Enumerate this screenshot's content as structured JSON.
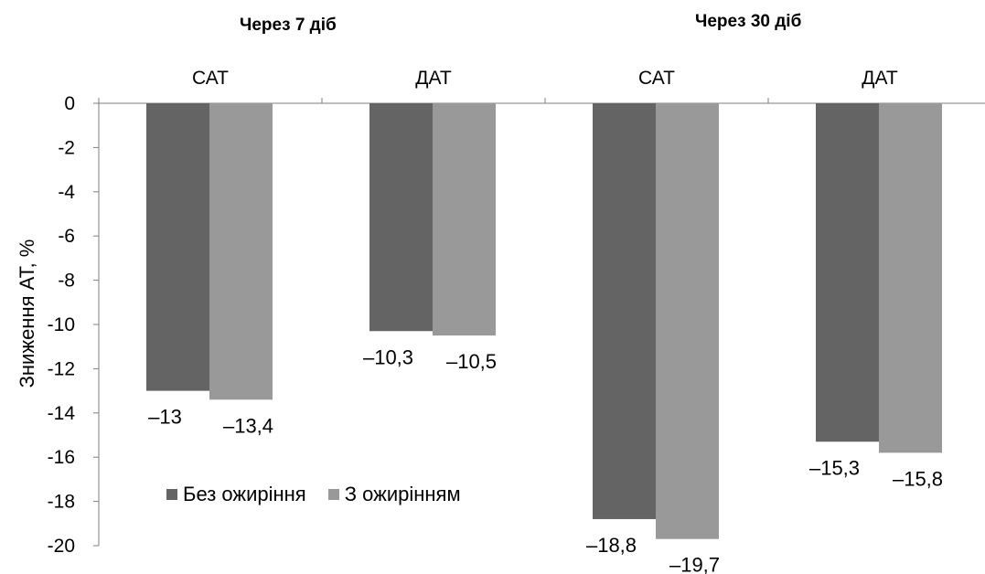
{
  "chart_data": {
    "type": "bar",
    "ylabel": "Зниження АТ, %",
    "ylim": [
      -20,
      0
    ],
    "yticks": [
      "0",
      "-2",
      "-4",
      "-6",
      "-8",
      "-10",
      "-12",
      "-14",
      "-16",
      "-18",
      "-20"
    ],
    "groups": [
      "Через 7 діб",
      "Через 30 діб"
    ],
    "categories": [
      "САТ",
      "ДАТ",
      "САТ",
      "ДАТ"
    ],
    "series": [
      {
        "name": "Без ожиріння",
        "values": [
          -13,
          -10.3,
          -18.8,
          -15.3
        ],
        "labels": [
          "–13",
          "–10,3",
          "–18,8",
          "–15,3"
        ],
        "color": "#646464"
      },
      {
        "name": "З ожирінням",
        "values": [
          -13.4,
          -10.5,
          -19.7,
          -15.8
        ],
        "labels": [
          "–13,4",
          "–10,5",
          "–19,7",
          "–15,8"
        ],
        "color": "#999999"
      }
    ],
    "legend_position": "bottom-left"
  }
}
